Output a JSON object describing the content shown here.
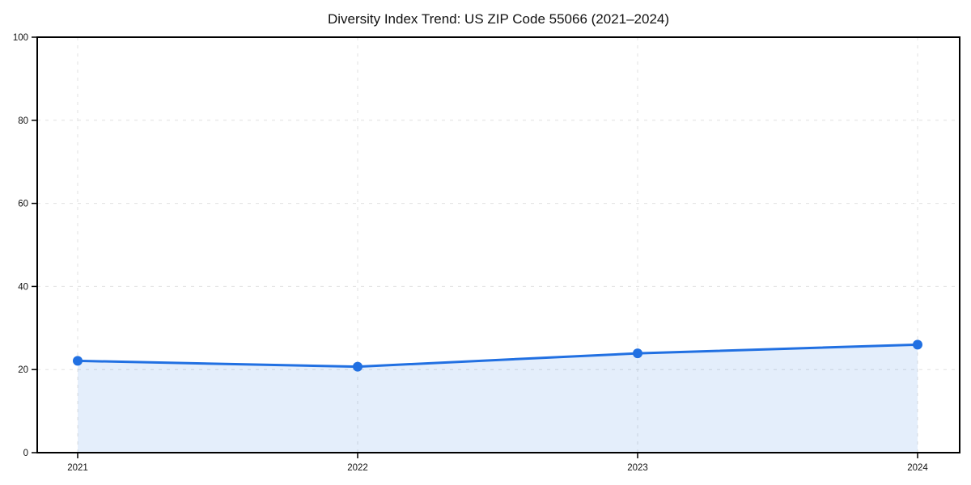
{
  "chart_data": {
    "type": "line",
    "title": "Diversity Index Trend: US ZIP Code 55066 (2021–2024)",
    "categories": [
      "2021",
      "2022",
      "2023",
      "2024"
    ],
    "series": [
      {
        "name": "Diversity Index",
        "values": [
          22.1,
          20.7,
          23.9,
          26.0
        ]
      }
    ],
    "xlabel": "",
    "ylabel": "",
    "ylim": [
      0,
      100
    ],
    "yticks": [
      0,
      20,
      40,
      60,
      80,
      100
    ],
    "grid": "dashed-both-axes",
    "legend": "none",
    "area_fill": true,
    "marker": "circle",
    "colors": {
      "line": "#2170e2",
      "marker": "#2170e2",
      "area_fill": "rgba(33,112,226,0.12)",
      "gridline": "#e0e0e0",
      "frame": "#000000",
      "tick_text": "#111111",
      "background": "#ffffff"
    }
  }
}
